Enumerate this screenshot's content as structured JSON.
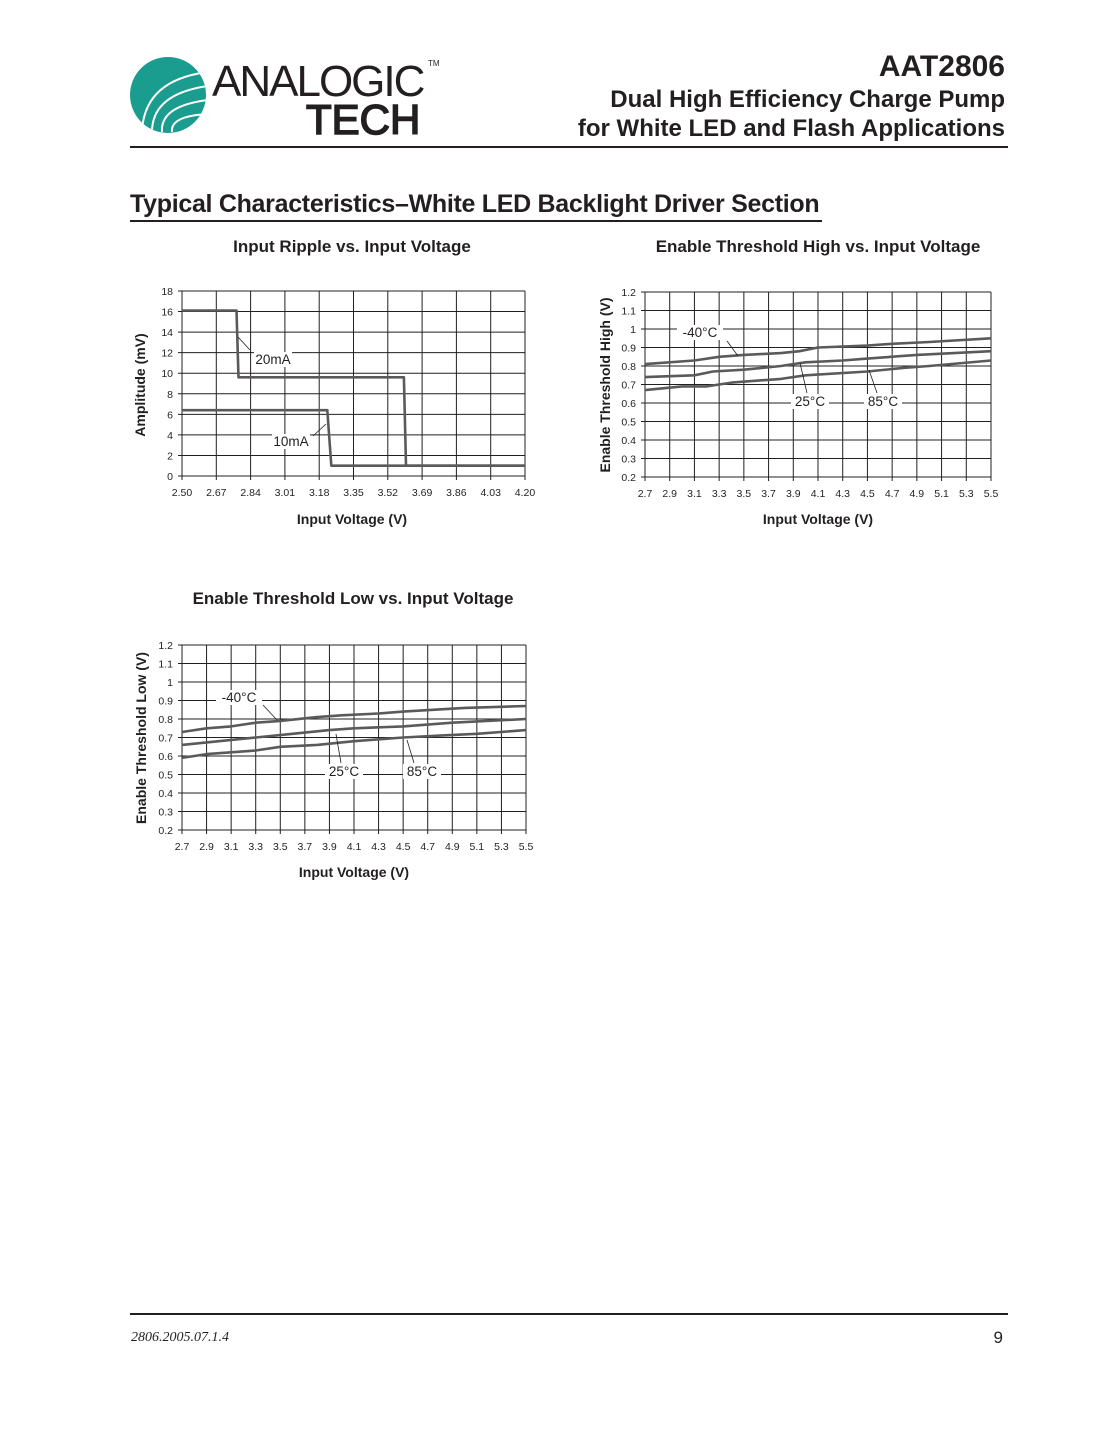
{
  "header": {
    "logo_text": "ANALOGIC TECH",
    "logo_tm": "TM",
    "logo_color": "#1a9c8f",
    "part_number": "AAT2806",
    "subtitle_line1": "Dual High Efficiency Charge Pump",
    "subtitle_line2": "for White LED and Flash Applications"
  },
  "section_title": "Typical Characteristics–White LED Backlight Driver Section",
  "footer": {
    "doc_code": "2806.2005.07.1.4",
    "page_number": "9"
  },
  "chart_data": [
    {
      "type": "line",
      "title": "Input Ripple vs. Input Voltage",
      "xlabel": "Input Voltage (V)",
      "ylabel": "Amplitude (mV)",
      "xlim": [
        2.5,
        4.2
      ],
      "ylim": [
        0,
        18
      ],
      "x_ticks": [
        "2.50",
        "2.67",
        "2.84",
        "3.01",
        "3.18",
        "3.35",
        "3.52",
        "3.69",
        "3.86",
        "4.03",
        "4.20"
      ],
      "y_ticks": [
        "0",
        "2",
        "4",
        "6",
        "8",
        "10",
        "12",
        "14",
        "16",
        "18"
      ],
      "grid": true,
      "line_color": "#5a5a5c",
      "series": [
        {
          "name": "20mA",
          "x": [
            2.5,
            2.77,
            2.78,
            3.6,
            3.61,
            4.2
          ],
          "y": [
            16.1,
            16.1,
            9.6,
            9.6,
            1.0,
            1.0
          ]
        },
        {
          "name": "10mA",
          "x": [
            2.5,
            3.22,
            3.24,
            4.2
          ],
          "y": [
            6.4,
            6.4,
            1.0,
            1.0
          ]
        }
      ]
    },
    {
      "type": "line",
      "title": "Enable Threshold High vs. Input Voltage",
      "xlabel": "Input Voltage (V)",
      "ylabel": "Enable Threshold High (V)",
      "xlim": [
        2.7,
        5.5
      ],
      "ylim": [
        0.2,
        1.2
      ],
      "x_ticks": [
        "2.7",
        "2.9",
        "3.1",
        "3.3",
        "3.5",
        "3.7",
        "3.9",
        "4.1",
        "4.3",
        "4.5",
        "4.7",
        "4.9",
        "5.1",
        "5.3",
        "5.5"
      ],
      "y_ticks": [
        "0.2",
        "0.3",
        "0.4",
        "0.5",
        "0.6",
        "0.7",
        "0.8",
        "0.9",
        "1",
        "1.1",
        "1.2"
      ],
      "grid": true,
      "line_color": "#5a5a5c",
      "series": [
        {
          "name": "-40°C",
          "x": [
            2.7,
            3.1,
            3.3,
            3.5,
            3.8,
            3.95,
            4.1,
            4.5,
            4.7,
            5.0,
            5.5
          ],
          "y": [
            0.81,
            0.83,
            0.85,
            0.86,
            0.87,
            0.88,
            0.9,
            0.91,
            0.92,
            0.93,
            0.95
          ]
        },
        {
          "name": "25°C",
          "x": [
            2.7,
            3.1,
            3.25,
            3.5,
            3.8,
            4.0,
            4.3,
            4.5,
            4.9,
            5.5
          ],
          "y": [
            0.74,
            0.75,
            0.77,
            0.78,
            0.8,
            0.82,
            0.83,
            0.84,
            0.86,
            0.88
          ]
        },
        {
          "name": "85°C",
          "x": [
            2.7,
            3.0,
            3.2,
            3.4,
            3.8,
            4.0,
            4.5,
            4.8,
            5.0,
            5.5
          ],
          "y": [
            0.67,
            0.69,
            0.69,
            0.71,
            0.73,
            0.75,
            0.77,
            0.79,
            0.8,
            0.83
          ]
        }
      ]
    },
    {
      "type": "line",
      "title": "Enable Threshold Low vs. Input Voltage",
      "xlabel": "Input Voltage (V)",
      "ylabel": "Enable Threshold Low  (V)",
      "xlim": [
        2.7,
        5.5
      ],
      "ylim": [
        0.2,
        1.2
      ],
      "x_ticks": [
        "2.7",
        "2.9",
        "3.1",
        "3.3",
        "3.5",
        "3.7",
        "3.9",
        "4.1",
        "4.3",
        "4.5",
        "4.7",
        "4.9",
        "5.1",
        "5.3",
        "5.5"
      ],
      "y_ticks": [
        "0.2",
        "0.3",
        "0.4",
        "0.5",
        "0.6",
        "0.7",
        "0.8",
        "0.9",
        "1",
        "1.1",
        "1.2"
      ],
      "grid": true,
      "line_color": "#5a5a5c",
      "series": [
        {
          "name": "-40°C",
          "x": [
            2.7,
            2.9,
            3.1,
            3.3,
            3.5,
            3.8,
            4.0,
            4.3,
            4.5,
            5.0,
            5.5
          ],
          "y": [
            0.73,
            0.75,
            0.76,
            0.78,
            0.79,
            0.81,
            0.82,
            0.83,
            0.84,
            0.86,
            0.87
          ]
        },
        {
          "name": "25°C",
          "x": [
            2.7,
            3.0,
            3.3,
            3.6,
            3.9,
            4.1,
            4.5,
            4.9,
            5.5
          ],
          "y": [
            0.66,
            0.68,
            0.7,
            0.72,
            0.74,
            0.75,
            0.76,
            0.78,
            0.8
          ]
        },
        {
          "name": "85°C",
          "x": [
            2.7,
            2.9,
            3.1,
            3.3,
            3.5,
            3.8,
            4.1,
            4.5,
            4.8,
            5.1,
            5.5
          ],
          "y": [
            0.59,
            0.61,
            0.62,
            0.63,
            0.65,
            0.66,
            0.68,
            0.7,
            0.71,
            0.72,
            0.74
          ]
        }
      ]
    }
  ]
}
